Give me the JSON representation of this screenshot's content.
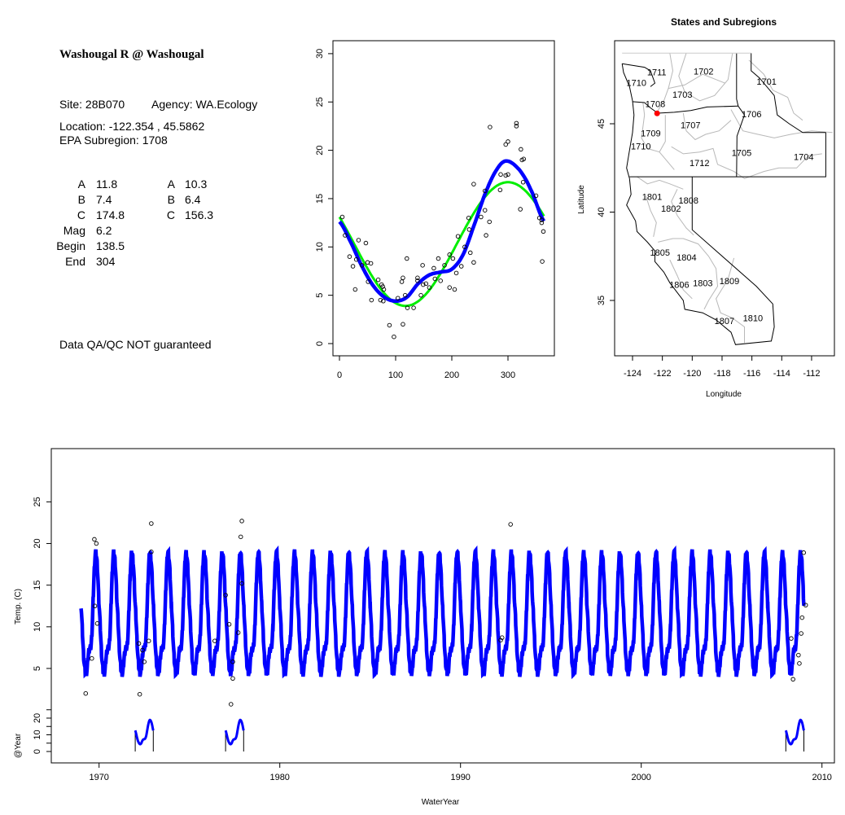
{
  "site_info": {
    "title": "Washougal R @ Washougal",
    "site": "Site: 28B070",
    "agency": "Agency: WA.Ecology",
    "location": "Location: -122.354 , 45.5862",
    "subregion": "EPA Subregion: 1708",
    "params_left": [
      {
        "label": "A",
        "value": "11.8"
      },
      {
        "label": "B",
        "value": "7.4"
      },
      {
        "label": "C",
        "value": "174.8"
      },
      {
        "label": "Mag",
        "value": "6.2"
      },
      {
        "label": "Begin",
        "value": "138.5"
      },
      {
        "label": "End",
        "value": "304"
      }
    ],
    "params_right": [
      {
        "label": "A",
        "value": "10.3"
      },
      {
        "label": "B",
        "value": "6.4"
      },
      {
        "label": "C",
        "value": "156.3"
      }
    ],
    "disclaimer": "Data QA/QC NOT guaranteed",
    "disclaimer_color": "#c0392b"
  },
  "chart_data": [
    {
      "type": "scatter",
      "title": "",
      "xlabel": "",
      "ylabel": "",
      "xlim": [
        0,
        365
      ],
      "ylim": [
        -1,
        31
      ],
      "xticks": [
        0,
        100,
        200,
        300
      ],
      "yticks": [
        0,
        5,
        10,
        15,
        20,
        25,
        30
      ],
      "points": [
        [
          5,
          13.1
        ],
        [
          10,
          11.2
        ],
        [
          18,
          9.0
        ],
        [
          24,
          8.0
        ],
        [
          28,
          5.6
        ],
        [
          30,
          8.7
        ],
        [
          34,
          10.7
        ],
        [
          40,
          8.1
        ],
        [
          47,
          10.4
        ],
        [
          50,
          8.4
        ],
        [
          51,
          6.4
        ],
        [
          56,
          8.3
        ],
        [
          57,
          4.5
        ],
        [
          69,
          6.6
        ],
        [
          73,
          4.5
        ],
        [
          75,
          6.1
        ],
        [
          77,
          5.9
        ],
        [
          78,
          4.4
        ],
        [
          79,
          5.6
        ],
        [
          89,
          1.9
        ],
        [
          97,
          0.7
        ],
        [
          104,
          4.7
        ],
        [
          111,
          6.4
        ],
        [
          113,
          6.8
        ],
        [
          113,
          2.0
        ],
        [
          117,
          5.0
        ],
        [
          120,
          8.8
        ],
        [
          121,
          3.7
        ],
        [
          132,
          3.7
        ],
        [
          139,
          6.8
        ],
        [
          139,
          6.5
        ],
        [
          145,
          5.0
        ],
        [
          148,
          8.1
        ],
        [
          149,
          6.1
        ],
        [
          154,
          6.2
        ],
        [
          160,
          5.8
        ],
        [
          168,
          7.8
        ],
        [
          170,
          6.7
        ],
        [
          176,
          8.8
        ],
        [
          180,
          6.5
        ],
        [
          187,
          8.1
        ],
        [
          196,
          9.2
        ],
        [
          196,
          5.8
        ],
        [
          202,
          8.8
        ],
        [
          205,
          5.6
        ],
        [
          208,
          7.3
        ],
        [
          211,
          11.1
        ],
        [
          217,
          8.0
        ],
        [
          223,
          10.0
        ],
        [
          230,
          13.0
        ],
        [
          231,
          11.8
        ],
        [
          233,
          9.4
        ],
        [
          239,
          16.5
        ],
        [
          239,
          8.4
        ],
        [
          252,
          13.1
        ],
        [
          259,
          15.8
        ],
        [
          259,
          13.8
        ],
        [
          261,
          11.2
        ],
        [
          267,
          12.6
        ],
        [
          268,
          22.4
        ],
        [
          286,
          15.9
        ],
        [
          287,
          17.5
        ],
        [
          296,
          17.4
        ],
        [
          296,
          20.6
        ],
        [
          300,
          20.9
        ],
        [
          300,
          17.5
        ],
        [
          315,
          22.8
        ],
        [
          315,
          22.5
        ],
        [
          322,
          13.9
        ],
        [
          323,
          20.1
        ],
        [
          325,
          19.0
        ],
        [
          328,
          19.1
        ],
        [
          327,
          16.7
        ],
        [
          350,
          15.3
        ],
        [
          356,
          13.0
        ],
        [
          360,
          12.5
        ],
        [
          360,
          12.8
        ],
        [
          363,
          11.6
        ],
        [
          361,
          8.5
        ]
      ],
      "series": [
        {
          "name": "fit-harmonic",
          "color": "#0000ff",
          "x": [
            0,
            20,
            40,
            60,
            80,
            100,
            120,
            140,
            160,
            180,
            200,
            220,
            240,
            260,
            280,
            297,
            320,
            340,
            365
          ],
          "y": [
            12.6,
            10.5,
            8.0,
            6.0,
            4.8,
            4.4,
            4.8,
            6.2,
            7.1,
            7.4,
            7.7,
            9.2,
            12.3,
            15.6,
            18.0,
            18.9,
            18.0,
            16.0,
            12.6
          ]
        },
        {
          "name": "fit-sine",
          "color": "#00ee00",
          "mean": 10.3,
          "amplitude": 6.4,
          "peak_day": 300,
          "period": 365
        }
      ]
    },
    {
      "type": "map",
      "title": "States and Subregions",
      "xlabel": "Longitude",
      "ylabel": "Latitude",
      "xlim": [
        -125.2,
        -110.5
      ],
      "ylim": [
        32.3,
        50.1
      ],
      "xticks": [
        -124,
        -122,
        -120,
        -118,
        -116,
        -114,
        -112
      ],
      "yticks": [
        35,
        40,
        45
      ],
      "site": {
        "lon": -122.354,
        "lat": 45.5862,
        "color": "#ff0000"
      },
      "regions": [
        {
          "name": "1702",
          "lon": -119.24,
          "lat": 47.98
        },
        {
          "name": "1711",
          "lon": -122.38,
          "lat": 47.92
        },
        {
          "name": "1710",
          "lon": -123.74,
          "lat": 47.32
        },
        {
          "name": "1701",
          "lon": -115.02,
          "lat": 47.4
        },
        {
          "name": "1703",
          "lon": -120.66,
          "lat": 46.66
        },
        {
          "name": "1708",
          "lon": -122.47,
          "lat": 46.12
        },
        {
          "name": "1706",
          "lon": -116.02,
          "lat": 45.55
        },
        {
          "name": "1707",
          "lon": -120.11,
          "lat": 44.94
        },
        {
          "name": "1709",
          "lon": -122.78,
          "lat": 44.48
        },
        {
          "name": "1710",
          "lon": -123.44,
          "lat": 43.74
        },
        {
          "name": "1705",
          "lon": -116.69,
          "lat": 43.37
        },
        {
          "name": "1704",
          "lon": -112.53,
          "lat": 43.14
        },
        {
          "name": "1712",
          "lon": -119.51,
          "lat": 42.79
        },
        {
          "name": "1801",
          "lon": -122.69,
          "lat": 40.87
        },
        {
          "name": "1808",
          "lon": -120.25,
          "lat": 40.67
        },
        {
          "name": "1802",
          "lon": -121.42,
          "lat": 40.21
        },
        {
          "name": "1805",
          "lon": -122.16,
          "lat": 37.72
        },
        {
          "name": "1804",
          "lon": -120.38,
          "lat": 37.44
        },
        {
          "name": "1806",
          "lon": -120.87,
          "lat": 35.9
        },
        {
          "name": "1803",
          "lon": -119.29,
          "lat": 36.0
        },
        {
          "name": "1809",
          "lon": -117.51,
          "lat": 36.1
        },
        {
          "name": "1807",
          "lon": -117.84,
          "lat": 33.85
        },
        {
          "name": "1810",
          "lon": -115.93,
          "lat": 34.0
        }
      ]
    },
    {
      "type": "line",
      "title": "",
      "xlabel": "WaterYear",
      "ylabel": "Temp. (C)",
      "inset_ylabel": "@Year",
      "xlim": [
        1967.4,
        2010.7
      ],
      "ylim": [
        -6.5,
        32
      ],
      "xticks": [
        1970,
        1980,
        1990,
        2000,
        2010
      ],
      "yticks": [
        5,
        10,
        15,
        20,
        25
      ],
      "inset_yticks": [
        0,
        5,
        10,
        15,
        20,
        25
      ],
      "inset_ylabels": [
        0,
        10,
        20
      ],
      "fit_years": [
        1969,
        2009
      ],
      "highlight_years": [
        1972,
        1977,
        2008
      ],
      "color": "#0000ff",
      "points": [
        [
          1969.26,
          2.0
        ],
        [
          1969.74,
          20.5
        ],
        [
          1969.85,
          20.0
        ],
        [
          1969.77,
          12.5
        ],
        [
          1969.6,
          6.2
        ],
        [
          1969.9,
          10.4
        ],
        [
          1972.89,
          22.4
        ],
        [
          1972.89,
          19.0
        ],
        [
          1972.25,
          1.9
        ],
        [
          1972.2,
          8.0
        ],
        [
          1972.5,
          5.8
        ],
        [
          1972.4,
          7.2
        ],
        [
          1972.75,
          8.3
        ],
        [
          1977.3,
          0.7
        ],
        [
          1977.4,
          3.8
        ],
        [
          1977.84,
          20.8
        ],
        [
          1977.9,
          22.7
        ],
        [
          1977.2,
          10.3
        ],
        [
          1977.7,
          9.3
        ],
        [
          1977.9,
          15.2
        ],
        [
          1977.0,
          13.8
        ],
        [
          1976.4,
          8.3
        ],
        [
          1977.4,
          5.8
        ],
        [
          1992.77,
          22.3
        ],
        [
          1992.22,
          8.4
        ],
        [
          1992.3,
          8.7
        ],
        [
          2008.4,
          3.7
        ],
        [
          2008.99,
          18.9
        ],
        [
          2009.1,
          12.6
        ],
        [
          2008.9,
          11.1
        ],
        [
          2008.85,
          9.2
        ],
        [
          2008.3,
          8.6
        ],
        [
          2008.7,
          6.6
        ],
        [
          2008.75,
          5.6
        ]
      ]
    }
  ]
}
